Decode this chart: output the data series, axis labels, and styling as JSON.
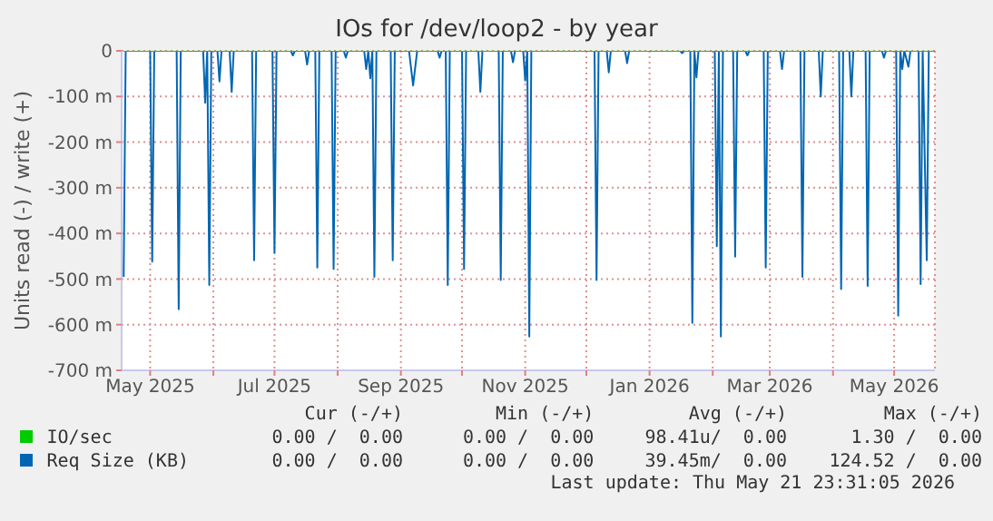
{
  "chart_data": {
    "type": "line",
    "title": "IOs for /dev/loop2 - by year",
    "ylabel": "Units read (-) / write (+)",
    "xlim": [
      "2025-04-17",
      "2026-05-21"
    ],
    "xticks": [
      {
        "value": "2025-05-01",
        "label": "May 2025"
      },
      {
        "value": "2025-06-01",
        "label": null
      },
      {
        "value": "2025-07-01",
        "label": "Jul 2025"
      },
      {
        "value": "2025-08-01",
        "label": null
      },
      {
        "value": "2025-09-01",
        "label": "Sep 2025"
      },
      {
        "value": "2025-10-01",
        "label": null
      },
      {
        "value": "2025-11-01",
        "label": "Nov 2025"
      },
      {
        "value": "2025-12-01",
        "label": null
      },
      {
        "value": "2026-01-01",
        "label": "Jan 2026"
      },
      {
        "value": "2026-02-01",
        "label": null
      },
      {
        "value": "2026-03-01",
        "label": "Mar 2026"
      },
      {
        "value": "2026-04-01",
        "label": null
      },
      {
        "value": "2026-05-01",
        "label": "May 2026"
      }
    ],
    "ylim": [
      -700,
      0
    ],
    "yticks": [
      {
        "value": -700,
        "label": "-700 m"
      },
      {
        "value": -600,
        "label": "-600 m"
      },
      {
        "value": -500,
        "label": "-500 m"
      },
      {
        "value": -400,
        "label": "-400 m"
      },
      {
        "value": -300,
        "label": "-300 m"
      },
      {
        "value": -200,
        "label": "-200 m"
      },
      {
        "value": -100,
        "label": "-100 m"
      },
      0
    ],
    "grid": true,
    "legend": "bottom",
    "marker": "none",
    "line_style": "solid",
    "series": [
      {
        "name": "IO/sec",
        "color": "#00cc00",
        "x": [
          "2025-04-18",
          "2026-05-21"
        ],
        "values": [
          0,
          0
        ]
      },
      {
        "name": "Req Size (KB)",
        "color": "#0066b3",
        "x": [
          "2025-04-18",
          "2025-04-19",
          "2025-05-01",
          "2025-05-02",
          "2025-05-03",
          "2025-05-14",
          "2025-05-15",
          "2025-05-16",
          "2025-05-27",
          "2025-05-28",
          "2025-05-29",
          "2025-05-30",
          "2025-05-31",
          "2025-06-03",
          "2025-06-04",
          "2025-06-05",
          "2025-06-09",
          "2025-06-10",
          "2025-06-11",
          "2025-06-20",
          "2025-06-21",
          "2025-06-22",
          "2025-06-30",
          "2025-07-01",
          "2025-07-02",
          "2025-07-09",
          "2025-07-10",
          "2025-07-11",
          "2025-07-16",
          "2025-07-17",
          "2025-07-18",
          "2025-07-21",
          "2025-07-22",
          "2025-07-23",
          "2025-07-29",
          "2025-07-30",
          "2025-07-31",
          "2025-08-04",
          "2025-08-05",
          "2025-08-06",
          "2025-08-14",
          "2025-08-15",
          "2025-08-16",
          "2025-08-17",
          "2025-08-18",
          "2025-08-19",
          "2025-08-20",
          "2025-08-27",
          "2025-08-28",
          "2025-08-29",
          "2025-09-05",
          "2025-09-07",
          "2025-09-09",
          "2025-09-19",
          "2025-09-20",
          "2025-09-21",
          "2025-09-23",
          "2025-09-24",
          "2025-09-25",
          "2025-10-01",
          "2025-10-02",
          "2025-10-03",
          "2025-10-09",
          "2025-10-10",
          "2025-10-11",
          "2025-10-19",
          "2025-10-20",
          "2025-10-21",
          "2025-10-25",
          "2025-10-26",
          "2025-10-27",
          "2025-10-31",
          "2025-11-01",
          "2025-11-02",
          "2025-11-03",
          "2025-11-04",
          "2025-12-05",
          "2025-12-06",
          "2025-12-07",
          "2025-12-11",
          "2025-12-12",
          "2025-12-13",
          "2025-12-20",
          "2025-12-21",
          "2025-12-22",
          "2026-01-16",
          "2026-01-17",
          "2026-01-18",
          "2026-01-21",
          "2026-01-22",
          "2026-01-23",
          "2026-01-24",
          "2026-01-25",
          "2026-02-02",
          "2026-02-03",
          "2026-02-04",
          "2026-02-05",
          "2026-02-06",
          "2026-02-11",
          "2026-02-12",
          "2026-02-13",
          "2026-02-17",
          "2026-02-18",
          "2026-02-19",
          "2026-02-26",
          "2026-02-27",
          "2026-02-28",
          "2026-03-06",
          "2026-03-07",
          "2026-03-08",
          "2026-03-16",
          "2026-03-17",
          "2026-03-18",
          "2026-03-25",
          "2026-03-26",
          "2026-03-27",
          "2026-04-04",
          "2026-04-05",
          "2026-04-06",
          "2026-04-09",
          "2026-04-10",
          "2026-04-11",
          "2026-04-17",
          "2026-04-18",
          "2026-04-19",
          "2026-04-25",
          "2026-04-26",
          "2026-04-27",
          "2026-05-02",
          "2026-05-03",
          "2026-05-04",
          "2026-05-05",
          "2026-05-06",
          "2026-05-08",
          "2026-05-09",
          "2026-05-13",
          "2026-05-14",
          "2026-05-15",
          "2026-05-17",
          "2026-05-18",
          "2026-05-21"
        ],
        "values": [
          -495,
          0,
          0,
          -462,
          0,
          0,
          -566,
          0,
          0,
          -114,
          0,
          -513,
          0,
          0,
          -67,
          0,
          0,
          -90,
          0,
          0,
          -459,
          0,
          0,
          -442,
          0,
          0,
          -10,
          0,
          0,
          -30,
          0,
          0,
          -475,
          0,
          0,
          -478,
          0,
          0,
          -15,
          0,
          0,
          -40,
          0,
          -60,
          0,
          -495,
          0,
          0,
          -459,
          0,
          0,
          -76,
          0,
          0,
          -15,
          0,
          0,
          -513,
          0,
          0,
          -478,
          0,
          0,
          -90,
          0,
          0,
          -502,
          0,
          0,
          -25,
          0,
          0,
          -65,
          0,
          -626,
          0,
          0,
          -502,
          0,
          0,
          -47,
          0,
          0,
          -27,
          0,
          0,
          -5,
          0,
          0,
          -596,
          0,
          -58,
          0,
          0,
          -428,
          0,
          -626,
          0,
          0,
          -451,
          0,
          0,
          -10,
          0,
          0,
          -475,
          0,
          0,
          -40,
          0,
          0,
          -495,
          0,
          0,
          -100,
          0,
          0,
          -522,
          0,
          0,
          -100,
          0,
          0,
          -515,
          0,
          0,
          -15,
          0,
          0,
          -580,
          0,
          -40,
          0,
          -35,
          0,
          0,
          -511,
          0,
          -459,
          0,
          0
        ]
      }
    ],
    "annotations": [
      "Cur (-/+)",
      "Min (-/+)",
      "Avg (-/+)",
      "Max (-/+)",
      "0.00 /  0.00",
      "0.00 /  0.00",
      "98.41u/  0.00",
      "1.30 /  0.00",
      "0.00 /  0.00",
      "0.00 /  0.00",
      "39.45m/  0.00",
      "124.52 /  0.00",
      "Last update: Thu May 21 23:31:05 2026"
    ]
  }
}
